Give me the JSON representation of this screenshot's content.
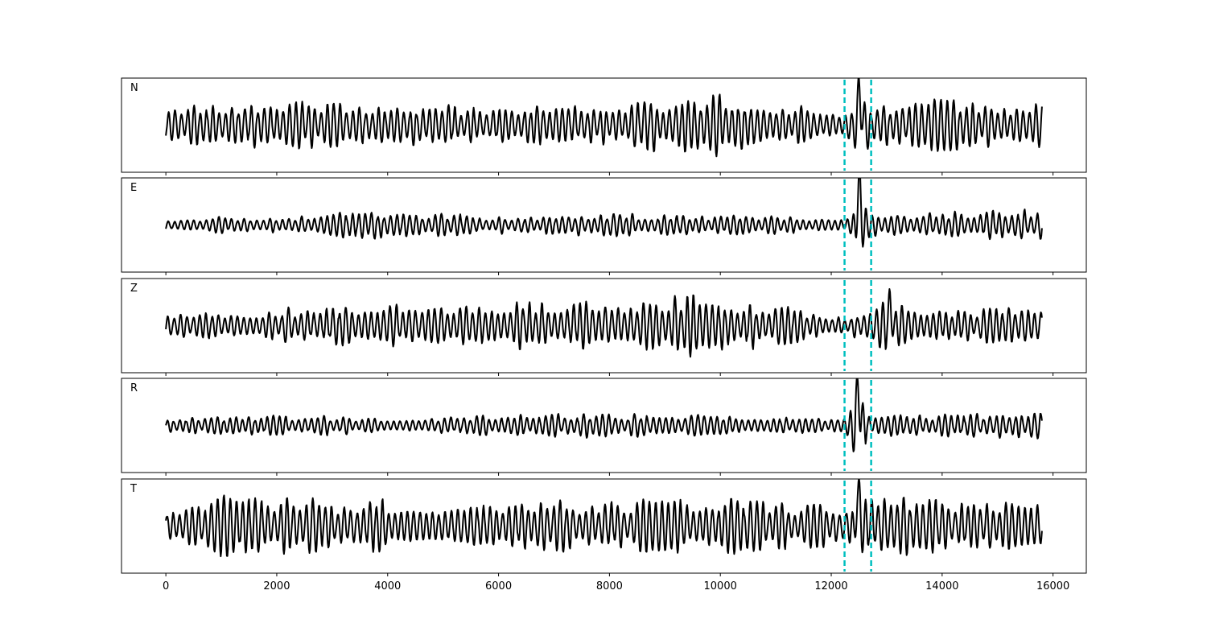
{
  "chart_data": {
    "type": "line",
    "title": "",
    "xlabel": "",
    "ylabel": "",
    "xlim": [
      -800,
      16600
    ],
    "x_ticks": [
      0,
      2000,
      4000,
      6000,
      8000,
      10000,
      12000,
      14000,
      16000
    ],
    "x_tick_labels": [
      "0",
      "2000",
      "4000",
      "6000",
      "8000",
      "10000",
      "12000",
      "14000",
      "16000"
    ],
    "n_samples": 15800,
    "trace_color": "#000000",
    "marker_color": "#00bfbf",
    "markers": [
      12240,
      12720
    ],
    "grid": false,
    "legend": "none",
    "panels": [
      {
        "label": "N",
        "ylim": [
          -1.25,
          1.25
        ],
        "envelope": [
          [
            0,
            0.55
          ],
          [
            2000,
            0.65
          ],
          [
            4000,
            0.6
          ],
          [
            6000,
            0.62
          ],
          [
            8000,
            0.6
          ],
          [
            9900,
            0.95
          ],
          [
            11500,
            0.55
          ],
          [
            12240,
            0.35
          ],
          [
            12500,
            1.05
          ],
          [
            12720,
            0.6
          ],
          [
            14000,
            0.72
          ],
          [
            15800,
            0.6
          ]
        ],
        "pulse": {
          "x": 12500,
          "amp": 0.85
        }
      },
      {
        "label": "E",
        "ylim": [
          -1.25,
          1.25
        ],
        "envelope": [
          [
            0,
            0.22
          ],
          [
            2000,
            0.25
          ],
          [
            3800,
            0.4
          ],
          [
            6000,
            0.25
          ],
          [
            7500,
            0.35
          ],
          [
            9000,
            0.3
          ],
          [
            10500,
            0.3
          ],
          [
            12240,
            0.22
          ],
          [
            12500,
            0.9
          ],
          [
            12720,
            0.35
          ],
          [
            14000,
            0.38
          ],
          [
            15800,
            0.45
          ]
        ],
        "pulse": {
          "x": 12490,
          "amp": 1.05
        }
      },
      {
        "label": "Z",
        "ylim": [
          -1.25,
          1.25
        ],
        "envelope": [
          [
            0,
            0.35
          ],
          [
            2000,
            0.5
          ],
          [
            4000,
            0.65
          ],
          [
            6000,
            0.7
          ],
          [
            8000,
            0.65
          ],
          [
            9300,
            0.95
          ],
          [
            11000,
            0.6
          ],
          [
            12240,
            0.3
          ],
          [
            13000,
            0.7
          ],
          [
            14500,
            0.5
          ],
          [
            15800,
            0.6
          ]
        ],
        "pulse": {
          "x": 13050,
          "amp": 0.55
        }
      },
      {
        "label": "R",
        "ylim": [
          -1.25,
          1.25
        ],
        "envelope": [
          [
            0,
            0.2
          ],
          [
            2000,
            0.28
          ],
          [
            4000,
            0.25
          ],
          [
            6000,
            0.28
          ],
          [
            7500,
            0.35
          ],
          [
            9000,
            0.32
          ],
          [
            10500,
            0.3
          ],
          [
            12240,
            0.2
          ],
          [
            12500,
            0.9
          ],
          [
            12720,
            0.3
          ],
          [
            14000,
            0.3
          ],
          [
            15800,
            0.4
          ]
        ],
        "pulse": {
          "x": 12480,
          "amp": 1.05
        }
      },
      {
        "label": "T",
        "ylim": [
          -1.25,
          1.25
        ],
        "envelope": [
          [
            0,
            0.6
          ],
          [
            1450,
            0.95
          ],
          [
            3000,
            0.75
          ],
          [
            6000,
            0.7
          ],
          [
            8000,
            0.7
          ],
          [
            10000,
            0.85
          ],
          [
            12000,
            0.6
          ],
          [
            12500,
            0.95
          ],
          [
            13500,
            0.9
          ],
          [
            15000,
            0.8
          ],
          [
            15800,
            0.6
          ]
        ],
        "pulse": {
          "x": 12480,
          "amp": 0.8
        }
      }
    ]
  }
}
